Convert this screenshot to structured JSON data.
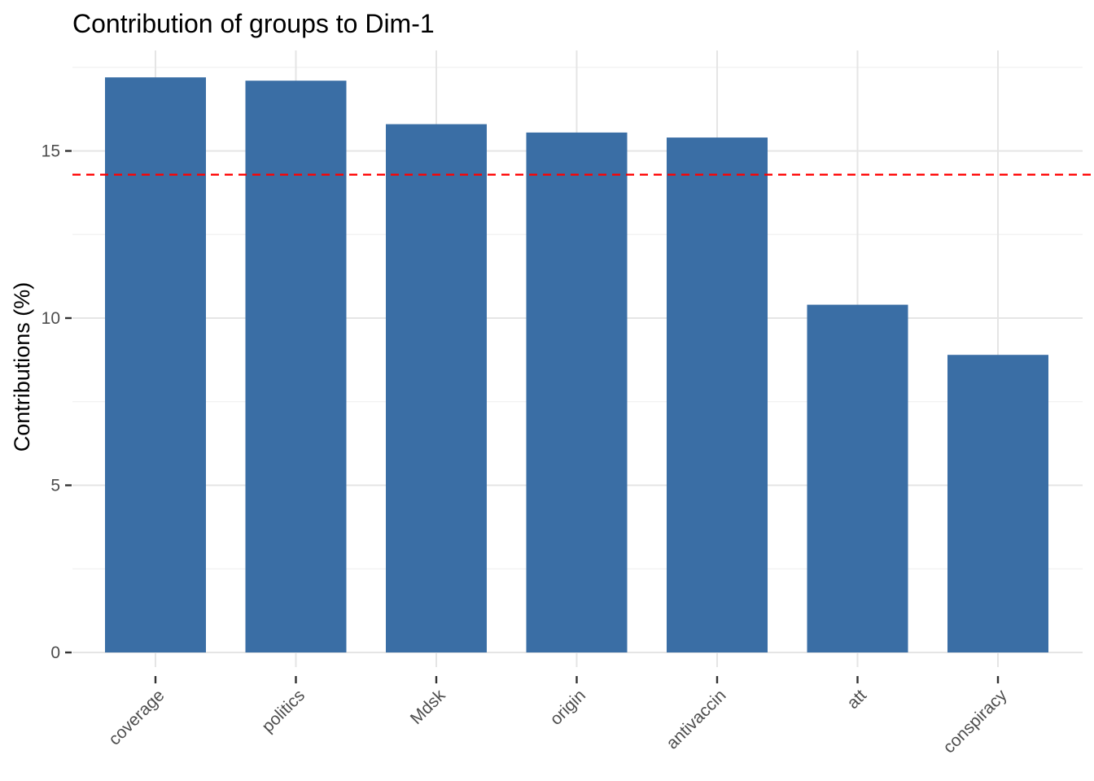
{
  "chart_data": {
    "type": "bar",
    "title": "Contribution of groups to Dim-1",
    "xlabel": "",
    "ylabel": "Contributions (%)",
    "categories": [
      "coverage",
      "politics",
      "Mdsk",
      "origin",
      "antivaccin",
      "att",
      "conspiracy"
    ],
    "values": [
      17.2,
      17.1,
      15.8,
      15.55,
      15.4,
      10.4,
      8.9
    ],
    "ylim": [
      0,
      17.9
    ],
    "yticks": [
      0,
      5,
      10,
      15
    ],
    "yticks_minor": [
      2.5,
      7.5,
      12.5,
      17.5
    ],
    "reference_line": {
      "value": 14.29,
      "style": "dashed",
      "color": "#ff0000"
    },
    "bar_color": "#3a6ea5",
    "grid": true,
    "legend": "none"
  }
}
